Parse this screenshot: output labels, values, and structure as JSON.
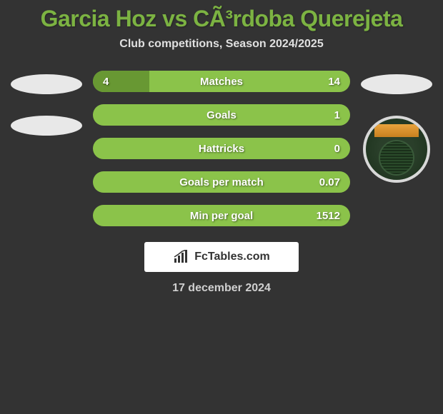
{
  "title": "Garcia Hoz vs CÃ³rdoba Querejeta",
  "subtitle": "Club competitions, Season 2024/2025",
  "footer_date": "17 december 2024",
  "footer_logo_text": "FcTables.com",
  "colors": {
    "background": "#333333",
    "title": "#7cb342",
    "bar_bg_1": "#8a9a3a",
    "bar_bg_2": "#8bc34a",
    "bar_left_fill": "#689833",
    "placeholder": "#e8e8e8"
  },
  "stats": [
    {
      "label": "Matches",
      "left_value": "4",
      "right_value": "14",
      "left_numeric": 4,
      "right_numeric": 14,
      "left_fill_pct": 22,
      "bar_bg": "#8bc34a",
      "left_fill_color": "#689833"
    },
    {
      "label": "Goals",
      "left_value": "",
      "right_value": "1",
      "left_numeric": 0,
      "right_numeric": 1,
      "left_fill_pct": 0,
      "bar_bg": "#8bc34a",
      "left_fill_color": "#689833"
    },
    {
      "label": "Hattricks",
      "left_value": "",
      "right_value": "0",
      "left_numeric": 0,
      "right_numeric": 0,
      "left_fill_pct": 0,
      "bar_bg": "#8bc34a",
      "left_fill_color": "#689833"
    },
    {
      "label": "Goals per match",
      "left_value": "",
      "right_value": "0.07",
      "left_numeric": 0,
      "right_numeric": 0.07,
      "left_fill_pct": 0,
      "bar_bg": "#8bc34a",
      "left_fill_color": "#689833"
    },
    {
      "label": "Min per goal",
      "left_value": "",
      "right_value": "1512",
      "left_numeric": 0,
      "right_numeric": 1512,
      "left_fill_pct": 0,
      "bar_bg": "#8bc34a",
      "left_fill_color": "#689833"
    }
  ]
}
